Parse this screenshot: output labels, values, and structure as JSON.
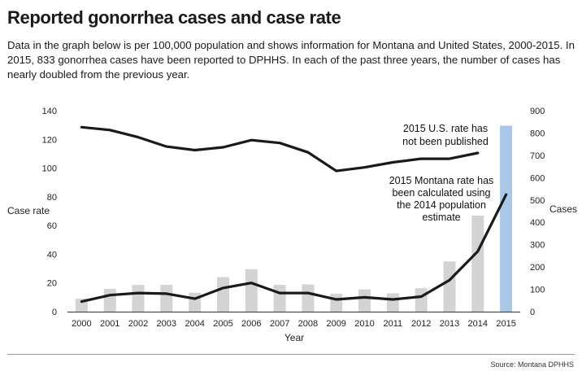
{
  "header": {
    "title": "Reported gonorrhea cases and case rate",
    "intro": "Data in the graph below is per 100,000 population and shows information for Montana and United States, 2000-2015. In 2015, 833 gonorrhea cases have been reported to DPHHS. In each of the past three years, the number of cases has nearly doubled from the previous year."
  },
  "chart_data": {
    "type": "bar+line",
    "categories": [
      "2000",
      "2001",
      "2002",
      "2003",
      "2004",
      "2005",
      "2006",
      "2007",
      "2008",
      "2009",
      "2010",
      "2011",
      "2012",
      "2013",
      "2014",
      "2015"
    ],
    "xlabel": "Year",
    "ylabel_left": "Case rate",
    "ylabel_right": "Cases",
    "ylim_left": [
      0,
      140
    ],
    "yticks_left": [
      0,
      20,
      40,
      60,
      80,
      100,
      120,
      140
    ],
    "ylim_right": [
      0,
      900
    ],
    "yticks_right": [
      0,
      100,
      200,
      300,
      400,
      500,
      600,
      700,
      800,
      900
    ],
    "bars": {
      "axis": "right",
      "values": [
        58,
        102,
        120,
        120,
        85,
        155,
        190,
        120,
        122,
        80,
        100,
        82,
        105,
        225,
        430,
        833
      ],
      "color": "#d3d3d3",
      "highlight_index": 15,
      "highlight_color": "#a9c7e6"
    },
    "series": [
      {
        "axis": "left",
        "color": "#1a1a1a",
        "values": [
          128.5,
          126.5,
          121.5,
          115,
          112.5,
          114.5,
          119.5,
          117.5,
          111,
          98,
          100.5,
          104,
          106.5,
          106.5,
          110.5,
          null
        ]
      },
      {
        "axis": "left",
        "color": "#1a1a1a",
        "values": [
          7,
          11.5,
          13,
          12.5,
          9,
          16.5,
          20,
          13,
          13,
          8.5,
          10,
          8.5,
          10.5,
          22,
          42,
          81.5
        ]
      }
    ],
    "annotations": [
      {
        "lines": [
          "2015 U.S. rate has",
          "not been published"
        ]
      },
      {
        "lines": [
          "2015 Montana rate has",
          "been calculated using",
          "the 2014 population",
          "estimate"
        ]
      }
    ],
    "grid": false
  },
  "footer": {
    "source": "Source: Montana DPHHS"
  }
}
